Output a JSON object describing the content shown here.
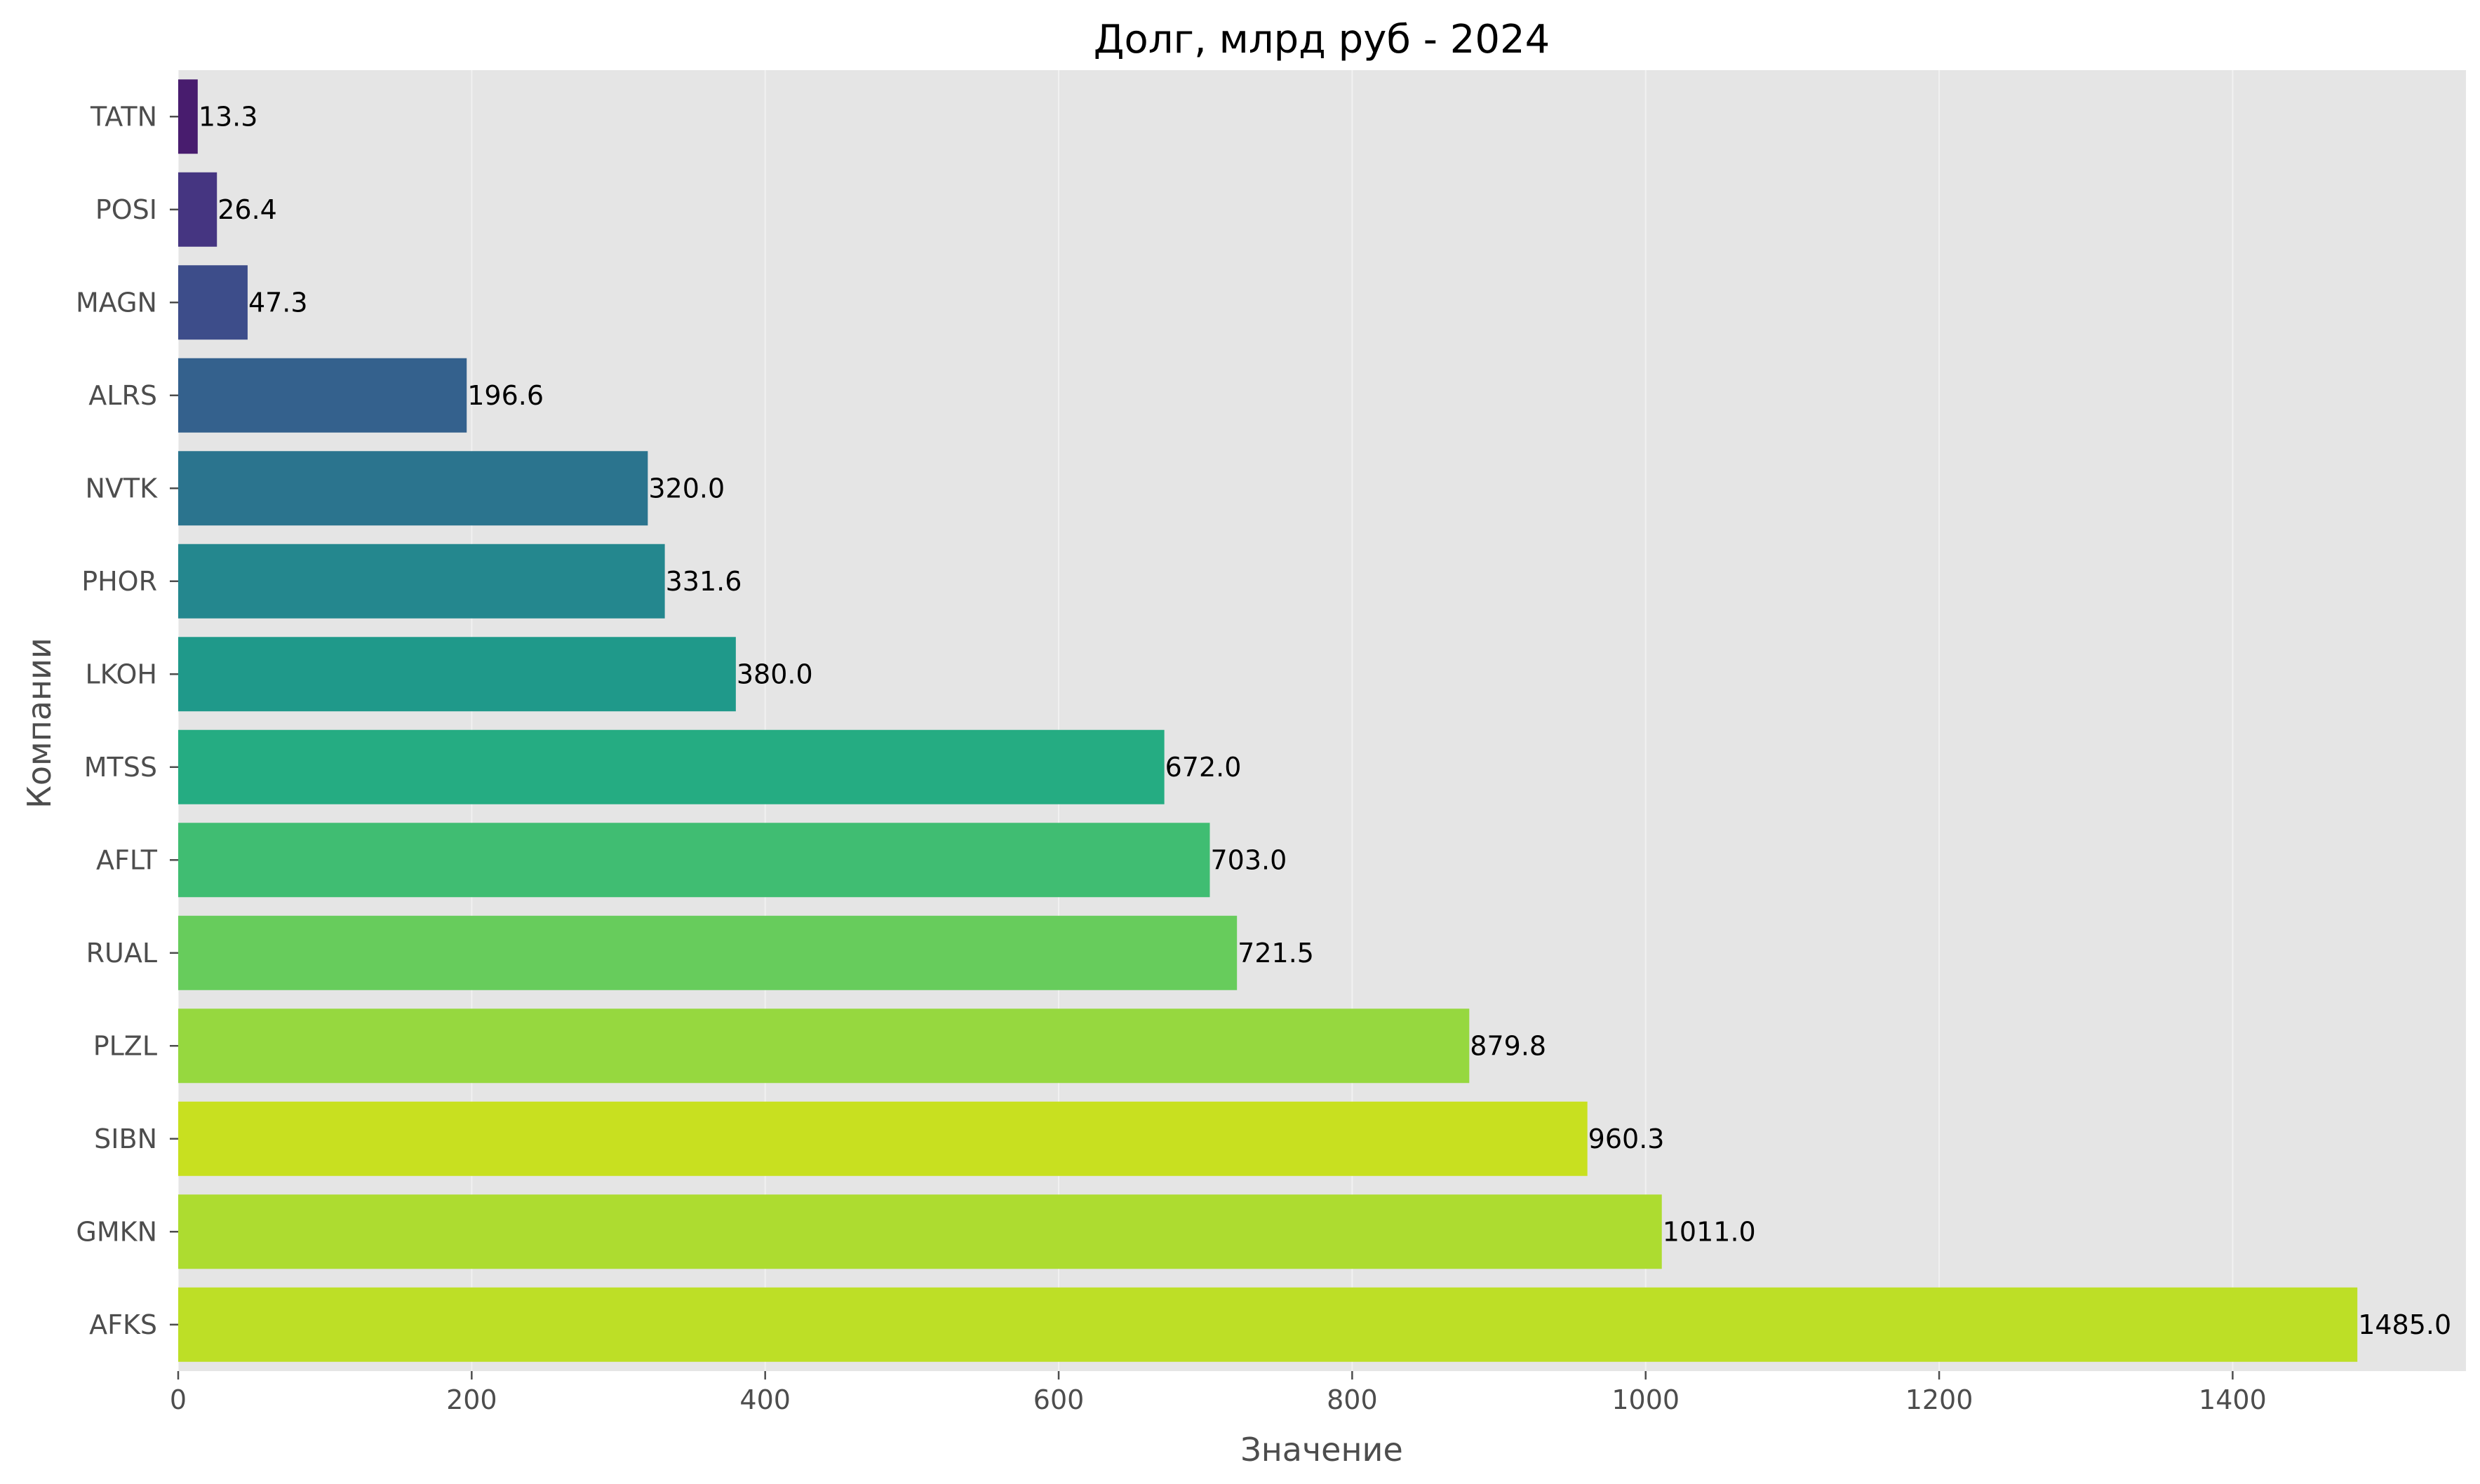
{
  "chart_data": {
    "type": "bar",
    "orientation": "horizontal",
    "title": "Долг, млрд руб - 2024",
    "xlabel": "Значение",
    "ylabel": "Компании",
    "categories": [
      "TATN",
      "POSI",
      "MAGN",
      "ALRS",
      "NVTK",
      "PHOR",
      "LKOH",
      "MTSS",
      "AFLT",
      "RUAL",
      "PLZL",
      "SIBN",
      "GMKN",
      "AFKS"
    ],
    "values": [
      13.3,
      26.4,
      47.3,
      196.6,
      320.0,
      331.6,
      380.0,
      672.0,
      703.0,
      721.5,
      879.8,
      960.3,
      1011.0,
      1485.0
    ],
    "value_labels": [
      "13.3",
      "26.4",
      "47.3",
      "196.6",
      "320.0",
      "331.6",
      "380.0",
      "672.0",
      "703.0",
      "721.5",
      "879.8",
      "960.3",
      "1011.0",
      "1485.0"
    ],
    "xlim": [
      0,
      1559
    ],
    "xticks": [
      0,
      200,
      400,
      600,
      800,
      1000,
      1200,
      1400
    ],
    "grid": true,
    "colors": [
      "#481c6e",
      "#453581",
      "#3d4d8a",
      "#34618d",
      "#2b748e",
      "#24878e",
      "#1f998a",
      "#25ac82",
      "#40bd72",
      "#67cc5c",
      "#96d83f",
      "#c8e020",
      "#addc30",
      "#bddf26"
    ],
    "background": "#e5e5e5"
  }
}
